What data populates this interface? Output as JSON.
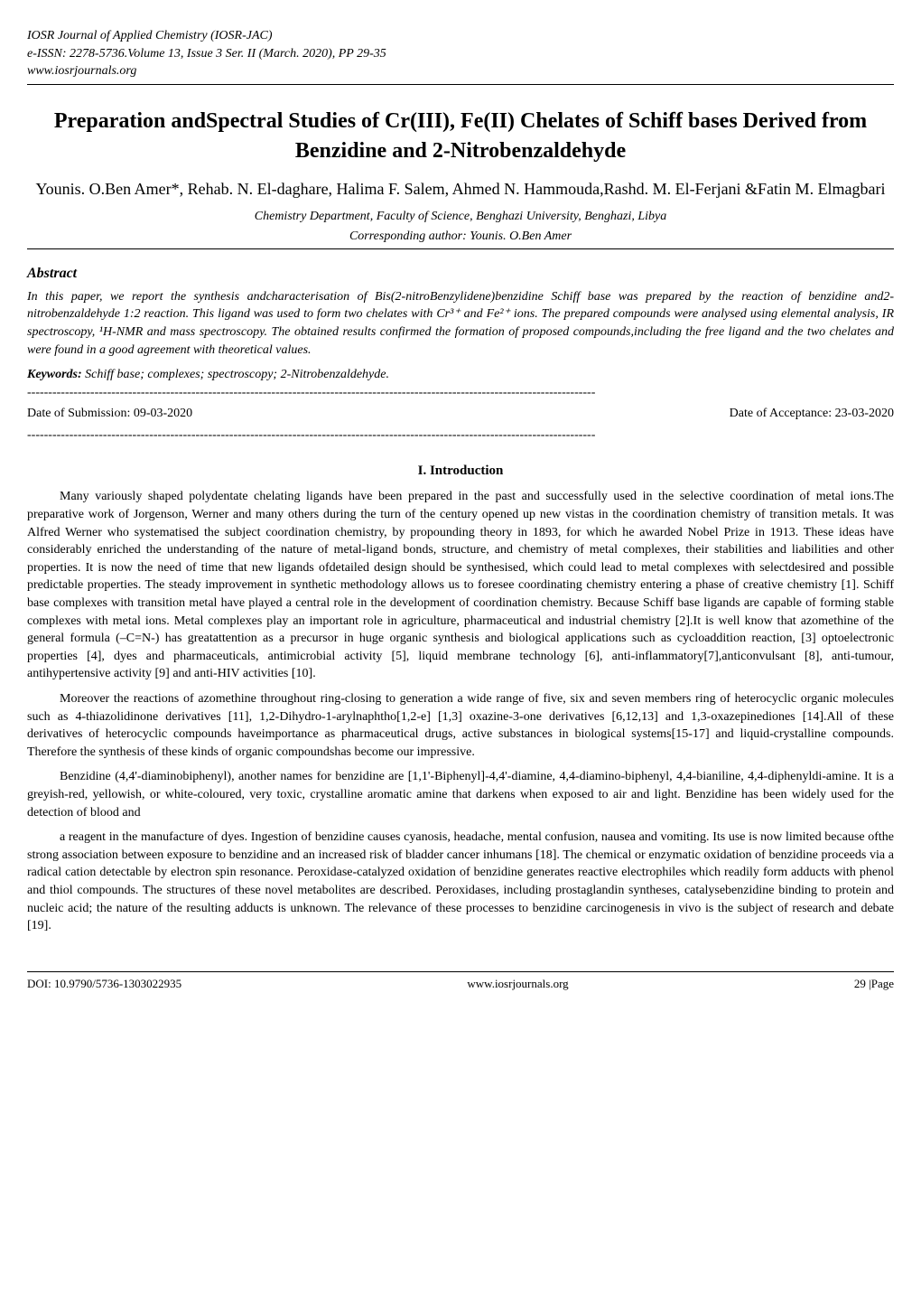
{
  "journal": {
    "name": "IOSR Journal of Applied Chemistry (IOSR-JAC)",
    "issn": "e-ISSN: 2278-5736.Volume 13, Issue 3 Ser. II (March. 2020), PP 29-35",
    "website": "www.iosrjournals.org"
  },
  "title": "Preparation andSpectral Studies of Cr(III), Fe(II) Chelates of Schiff bases Derived from Benzidine and 2-Nitrobenzaldehyde",
  "authors": "Younis. O.Ben Amer*, Rehab. N. El-daghare, Halima F. Salem, Ahmed N. Hammouda,Rashd. M. El-Ferjani &Fatin M. Elmagbari",
  "affiliation": "Chemistry Department, Faculty of Science, Benghazi University, Benghazi, Libya",
  "corresponding": "Corresponding author: Younis. O.Ben Amer",
  "abstract_heading": "Abstract",
  "abstract_text": "In this paper, we report the synthesis andcharacterisation of Bis(2-nitroBenzylidene)benzidine Schiff base was prepared by the reaction of benzidine and2-nitrobenzaldehyde 1:2 reaction. This ligand was used to form two chelates with Cr³⁺ and Fe²⁺ ions. The prepared compounds were analysed using elemental analysis, IR spectroscopy, ¹H-NMR and mass spectroscopy. The obtained results confirmed the formation of proposed compounds,including the free ligand and the two chelates and were found in a good agreement with theoretical values.",
  "keywords_label": "Keywords:",
  "keywords_text": " Schiff base; complexes; spectroscopy; 2-Nitrobenzaldehyde.",
  "date_submission": "Date of Submission: 09-03-2020",
  "date_acceptance": "Date of Acceptance: 23-03-2020",
  "section1_heading": "I.   Introduction",
  "intro_p1": "Many variously shaped polydentate chelating ligands have been prepared in the past and successfully used in the selective coordination of metal ions.The preparative work of Jorgenson, Werner and many others during the turn of the century opened up new vistas in the coordination chemistry of transition metals. It was Alfred Werner who systematised the subject coordination chemistry, by propounding theory in 1893, for which he awarded Nobel Prize in 1913. These ideas have considerably enriched the understanding of the nature of metal-ligand bonds, structure, and chemistry of metal complexes, their stabilities and liabilities and other properties. It is now the need of time that new ligands ofdetailed design should be synthesised, which could lead to metal complexes with selectdesired and possible predictable properties. The steady improvement in synthetic methodology allows us to foresee coordinating chemistry entering a phase of creative chemistry [1]. Schiff base complexes with transition metal have played a central role in the development of coordination chemistry. Because Schiff base ligands are capable of forming stable complexes with metal ions. Metal complexes play an important role in agriculture, pharmaceutical and industrial chemistry [2].It is well know that azomethine of the general formula (–C=N-) has greatattention as a precursor in huge organic synthesis and biological applications such as cycloaddition reaction, [3] optoelectronic properties [4], dyes and pharmaceuticals, antimicrobial activity [5], liquid membrane technology [6], anti-inflammatory[7],anticonvulsant [8], anti-tumour, antihypertensive activity [9] and anti-HIV activities [10].",
  "intro_p2": "Moreover the reactions of azomethine throughout ring-closing to generation a wide range of five, six and seven members ring of heterocyclic organic molecules such as 4-thiazolidinone derivatives [11], 1,2-Dihydro-1-arylnaphtho[1,2-e] [1,3] oxazine-3-one derivatives [6,12,13] and 1,3-oxazepinediones [14].All of these derivatives of heterocyclic compounds haveimportance as pharmaceutical drugs, active substances in biological systems[15-17] and liquid-crystalline compounds. Therefore the synthesis of these kinds of organic compoundshas become our impressive.",
  "intro_p3": "Benzidine (4,4'-diaminobiphenyl), another names for benzidine are [1,1'-Biphenyl]-4,4'-diamine, 4,4-diamino-biphenyl, 4,4-bianiline, 4,4-diphenyldi-amine. It is a greyish-red, yellowish, or white-coloured, very toxic, crystalline aromatic amine that darkens when exposed to air and light. Benzidine has been widely used for the detection of blood and",
  "intro_p4": "a reagent in the manufacture of dyes. Ingestion of benzidine causes cyanosis, headache, mental confusion, nausea and vomiting. Its use is now limited because ofthe strong association between exposure to benzidine and an increased risk of bladder cancer inhumans [18].  The chemical or enzymatic oxidation of benzidine proceeds via a radical cation detectable by electron spin resonance. Peroxidase-catalyzed oxidation of benzidine generates reactive electrophiles which readily form adducts with phenol and thiol compounds. The structures of these novel metabolites are described. Peroxidases, including prostaglandin syntheses, catalysebenzidine binding to protein and nucleic acid; the nature of the resulting adducts is unknown. The relevance of these processes to benzidine carcinogenesis in vivo is the subject of research and debate [19].",
  "footer": {
    "doi": "DOI: 10.9790/5736-1303022935",
    "site": "www.iosrjournals.org",
    "page": "29 |Page"
  },
  "dashes": "---------------------------------------------------------------------------------------------------------------------------------------"
}
